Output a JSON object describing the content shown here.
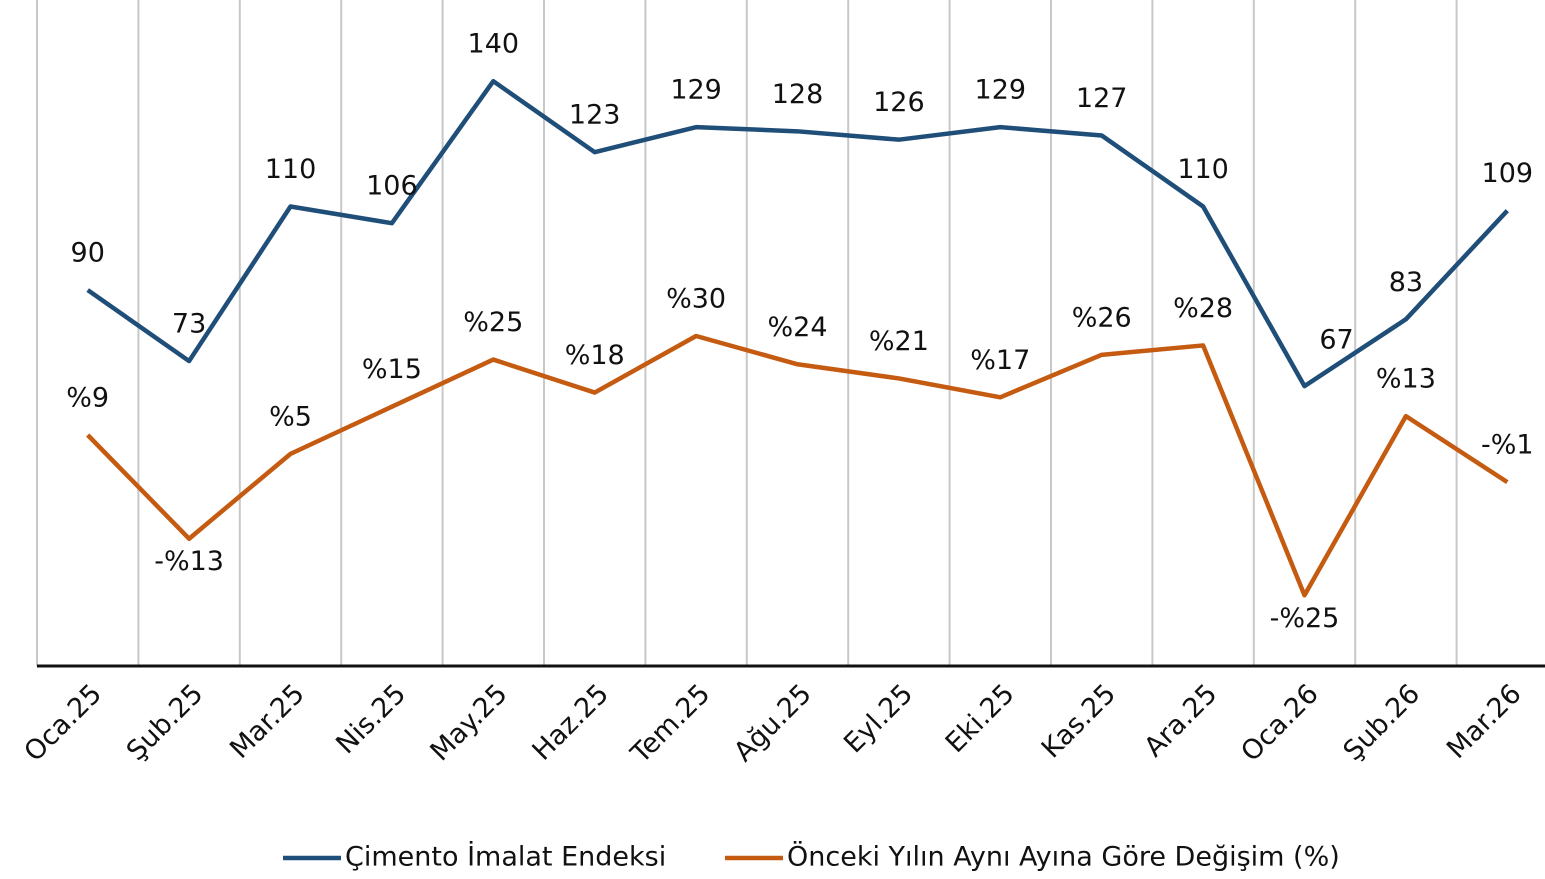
{
  "chart_data": {
    "type": "line",
    "categories": [
      "Oca.25",
      "Şub.25",
      "Mar.25",
      "Nis.25",
      "May.25",
      "Haz.25",
      "Tem.25",
      "Ağu.25",
      "Eyl.25",
      "Eki.25",
      "Kas.25",
      "Ara.25",
      "Oca.26",
      "Şub.26",
      "Mar.26"
    ],
    "series": [
      {
        "name": "Çimento İmalat Endeksi",
        "color": "#1f4e79",
        "values": [
          90,
          73,
          110,
          106,
          140,
          123,
          129,
          128,
          126,
          129,
          127,
          110,
          67,
          83,
          109
        ]
      },
      {
        "name": "Önceki Yılın Aynı Ayına Göre Değişim (%)",
        "color": "#c55a11",
        "axis": "y2",
        "values": [
          9,
          -13,
          5,
          15,
          25,
          18,
          30,
          24,
          21,
          17,
          26,
          28,
          -25,
          13,
          -1
        ],
        "value_labels": [
          "%9",
          "-%13",
          "%5",
          "%15",
          "%25",
          "%18",
          "%30",
          "%24",
          "%21",
          "%17",
          "%26",
          "%28",
          "-%25",
          "%13",
          "-%1"
        ]
      }
    ],
    "ylim": [
      0,
      158
    ],
    "y2lim": [
      -40,
      100
    ],
    "grid": true,
    "legend": "bottom"
  }
}
